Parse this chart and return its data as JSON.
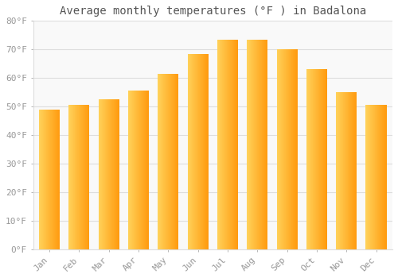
{
  "title": "Average monthly temperatures (°F ) in Badalona",
  "months": [
    "Jan",
    "Feb",
    "Mar",
    "Apr",
    "May",
    "Jun",
    "Jul",
    "Aug",
    "Sep",
    "Oct",
    "Nov",
    "Dec"
  ],
  "values": [
    49,
    50.5,
    52.5,
    55.5,
    61.5,
    68.5,
    73.5,
    73.5,
    70,
    63,
    55,
    50.5
  ],
  "bar_color_main": "#FFA500",
  "bar_color_light": "#FFD060",
  "background_color": "#ffffff",
  "plot_bg_color": "#f9f9f9",
  "grid_color": "#dddddd",
  "ylim": [
    0,
    80
  ],
  "yticks": [
    0,
    10,
    20,
    30,
    40,
    50,
    60,
    70,
    80
  ],
  "ytick_labels": [
    "0°F",
    "10°F",
    "20°F",
    "30°F",
    "40°F",
    "50°F",
    "60°F",
    "70°F",
    "80°F"
  ],
  "title_fontsize": 10,
  "tick_fontsize": 8,
  "title_color": "#555555",
  "tick_color": "#999999",
  "bar_width": 0.7
}
